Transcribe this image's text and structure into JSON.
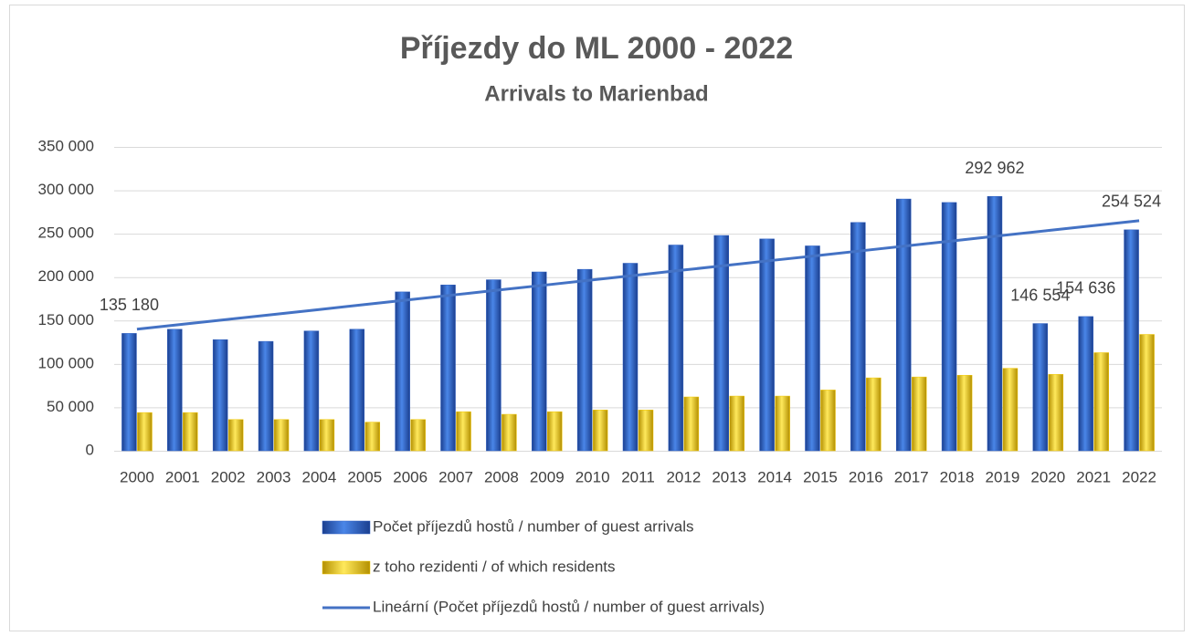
{
  "chart_data": {
    "type": "bar",
    "title": "Příjezdy do ML 2000 - 2022",
    "subtitle": "Arrivals to Marienbad",
    "categories": [
      "2000",
      "2001",
      "2002",
      "2003",
      "2004",
      "2005",
      "2006",
      "2007",
      "2008",
      "2009",
      "2010",
      "2011",
      "2012",
      "2013",
      "2014",
      "2015",
      "2016",
      "2017",
      "2018",
      "2019",
      "2020",
      "2021",
      "2022"
    ],
    "series": [
      {
        "name": "Počet příjezdů hostů / number of guest arrivals",
        "color": "#2e5fc1",
        "values": [
          135180,
          140000,
          128000,
          126000,
          138000,
          140000,
          183000,
          191000,
          197000,
          206000,
          209000,
          216000,
          237000,
          248000,
          244000,
          236000,
          263000,
          290000,
          286000,
          292962,
          146554,
          154636,
          254524
        ],
        "value_labels": [
          "135 180",
          null,
          null,
          null,
          null,
          null,
          null,
          null,
          null,
          null,
          null,
          null,
          null,
          null,
          null,
          null,
          null,
          null,
          null,
          "292 962",
          "146 554",
          "154 636",
          "254 524"
        ]
      },
      {
        "name": "z toho rezidenti / of which residents",
        "color": "#f2c700",
        "values": [
          44000,
          44000,
          36000,
          36000,
          36000,
          33000,
          36000,
          45000,
          42000,
          45000,
          47000,
          47000,
          62000,
          63000,
          63000,
          70000,
          84000,
          85000,
          87000,
          95000,
          88000,
          113000,
          134000
        ]
      },
      {
        "name": "Lineární (Počet příjezdů hostů / number of guest arrivals)",
        "color": "#4472c4",
        "type": "line",
        "values": [
          140000,
          145700,
          151400,
          157000,
          162700,
          168400,
          174100,
          179800,
          185500,
          191100,
          196800,
          202500,
          208200,
          213900,
          219600,
          225200,
          230900,
          236600,
          242300,
          248000,
          253700,
          259300,
          265000
        ]
      }
    ],
    "ylim": [
      0,
      350000
    ],
    "yticks": [
      0,
      {
        "value": 50000,
        "label": "50 000"
      },
      {
        "value": 100000,
        "label": "100 000"
      },
      {
        "value": 150000,
        "label": "150 000"
      },
      {
        "value": 200000,
        "label": "200 000"
      },
      {
        "value": 250000,
        "label": "250 000"
      },
      {
        "value": 300000,
        "label": "300 000"
      },
      {
        "value": 350000,
        "label": "350 000"
      }
    ],
    "grid": true
  }
}
